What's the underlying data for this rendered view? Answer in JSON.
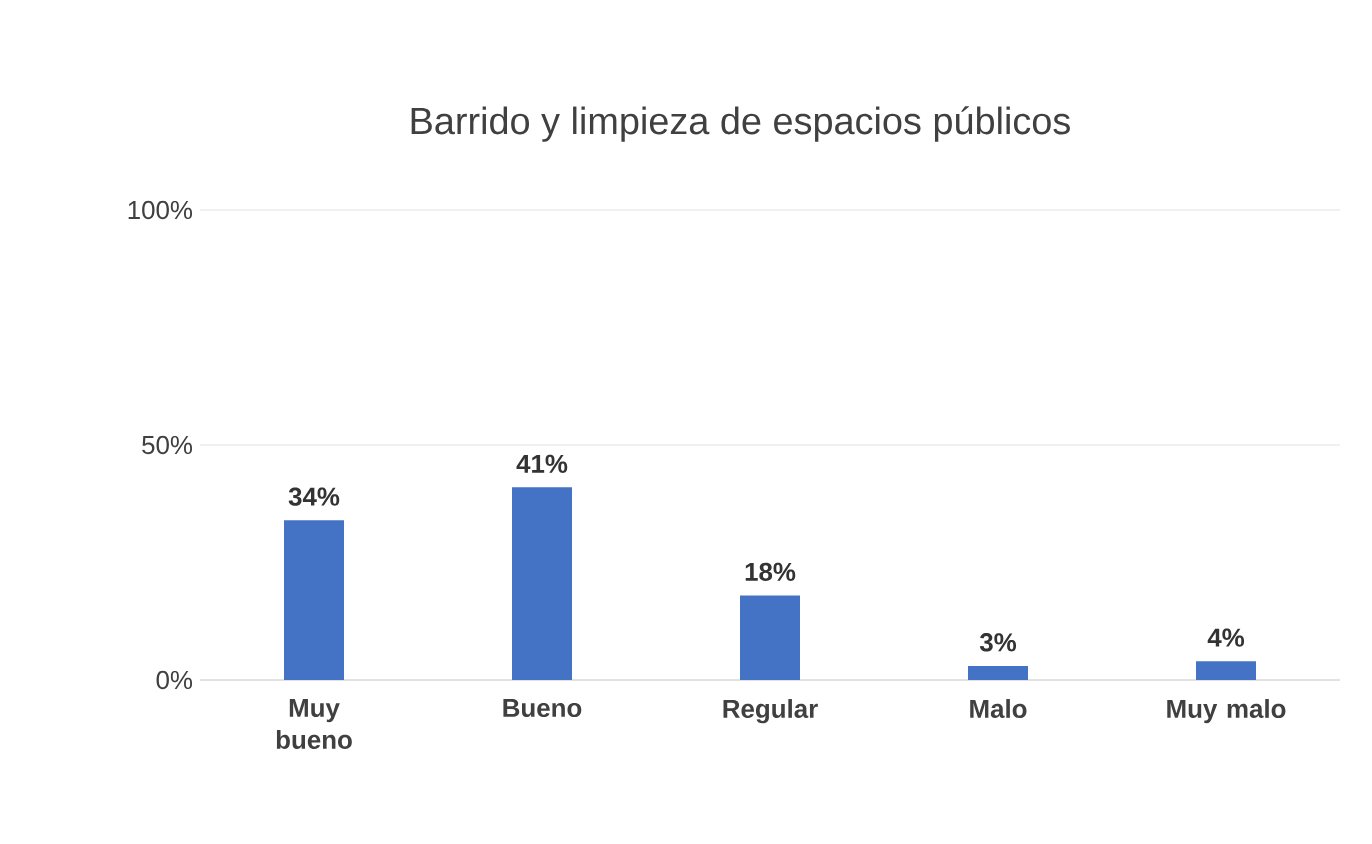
{
  "chart_data": {
    "type": "bar",
    "title": "Barrido y limpieza de espacios públicos",
    "categories": [
      "Muy bueno",
      "Bueno",
      "Regular",
      "Malo",
      "Muy malo"
    ],
    "values": [
      34,
      41,
      18,
      3,
      4
    ],
    "value_labels": [
      "34%",
      "41%",
      "18%",
      "3%",
      "4%"
    ],
    "color": "#4472c4",
    "ylim": [
      0,
      100
    ],
    "yticks": [
      {
        "value": 0,
        "label": "0%"
      },
      {
        "value": 50,
        "label": "50%"
      },
      {
        "value": 100,
        "label": "100%"
      }
    ],
    "grid": "y"
  }
}
